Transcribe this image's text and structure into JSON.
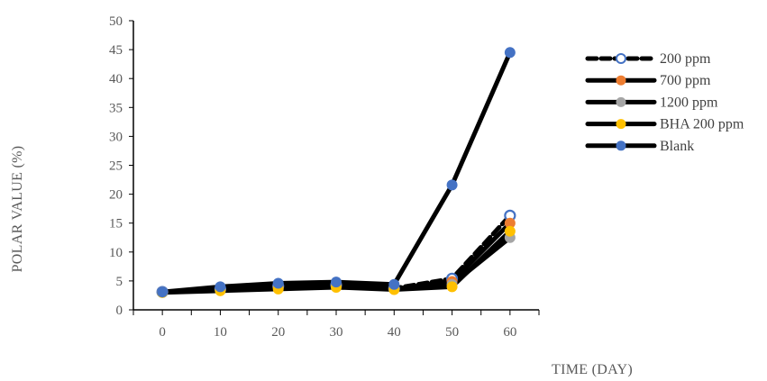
{
  "chart_data": {
    "type": "line",
    "title": "",
    "xlabel": "TIME (DAY)",
    "ylabel": "POLAR VALUE (%)",
    "x": [
      0,
      10,
      20,
      30,
      40,
      50,
      60
    ],
    "xlim": [
      -5,
      65
    ],
    "ylim": [
      0,
      50
    ],
    "yticks": [
      0,
      5,
      10,
      15,
      20,
      25,
      30,
      35,
      40,
      45,
      50
    ],
    "xticks": [
      0,
      10,
      20,
      30,
      40,
      50,
      60
    ],
    "grid": false,
    "legend_position": "right",
    "series": [
      {
        "name": "200 ppm",
        "values": [
          3.1,
          3.6,
          4.1,
          4.3,
          3.7,
          5.4,
          16.3
        ],
        "color": "#000000",
        "marker": "open-circle",
        "marker_color": "#4472c4",
        "line_style": "dashed"
      },
      {
        "name": "700 ppm",
        "values": [
          3.1,
          3.5,
          4.0,
          4.2,
          3.6,
          4.9,
          15.0
        ],
        "color": "#000000",
        "marker": "circle",
        "marker_color": "#ed7d31",
        "line_style": "solid"
      },
      {
        "name": "1200 ppm",
        "values": [
          3.1,
          3.5,
          3.9,
          4.1,
          3.6,
          4.4,
          12.5
        ],
        "color": "#000000",
        "marker": "circle",
        "marker_color": "#a5a5a5",
        "line_style": "solid"
      },
      {
        "name": "BHA 200 ppm",
        "values": [
          3.0,
          3.3,
          3.6,
          3.9,
          3.5,
          4.0,
          13.6
        ],
        "color": "#000000",
        "marker": "circle",
        "marker_color": "#ffc000",
        "line_style": "solid"
      },
      {
        "name": "Blank",
        "values": [
          3.1,
          4.0,
          4.6,
          4.8,
          4.4,
          21.6,
          44.5
        ],
        "color": "#000000",
        "marker": "circle",
        "marker_color": "#4472c4",
        "line_style": "solid"
      }
    ]
  }
}
